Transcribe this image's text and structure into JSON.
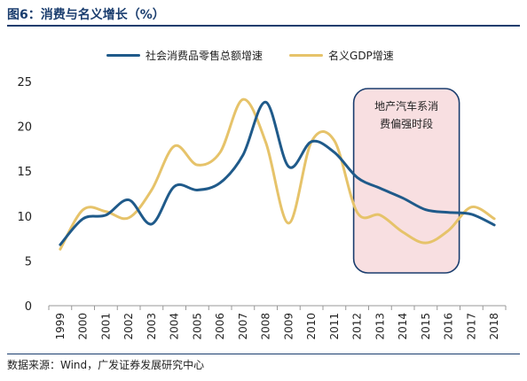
{
  "title": "图6：消费与名义增长（%）",
  "source": "数据来源：Wind，广发证券发展研究中心",
  "chart_data": {
    "type": "line",
    "x": [
      "1999",
      "2000",
      "2001",
      "2002",
      "2003",
      "2004",
      "2005",
      "2006",
      "2007",
      "2008",
      "2009",
      "2010",
      "2011",
      "2012",
      "2013",
      "2014",
      "2015",
      "2016",
      "2017",
      "2018"
    ],
    "ylim": [
      0,
      25
    ],
    "yticks": [
      0,
      5,
      10,
      15,
      20,
      25
    ],
    "grid": false,
    "legend_position": "top",
    "series": [
      {
        "name": "社会消费品零售总额增速",
        "color": "#1f5a8a",
        "values": [
          6.8,
          9.7,
          10.1,
          11.8,
          9.1,
          13.3,
          12.9,
          13.7,
          16.8,
          22.7,
          15.5,
          18.3,
          17.1,
          14.3,
          13.1,
          12.0,
          10.7,
          10.4,
          10.2,
          9.0
        ]
      },
      {
        "name": "名义GDP增速",
        "color": "#e6c36a",
        "values": [
          6.3,
          10.7,
          10.5,
          9.8,
          12.9,
          17.8,
          15.7,
          17.1,
          23.0,
          18.2,
          9.2,
          18.3,
          18.4,
          10.4,
          10.1,
          8.2,
          7.0,
          8.4,
          11.0,
          9.7
        ]
      }
    ],
    "annotation": {
      "text_line1": "地产汽车系消",
      "text_line2": "费偏强时段",
      "x_start": "2012",
      "x_end": "2016",
      "fill": "#f8dfe1",
      "stroke": "#1a3d6e"
    }
  }
}
